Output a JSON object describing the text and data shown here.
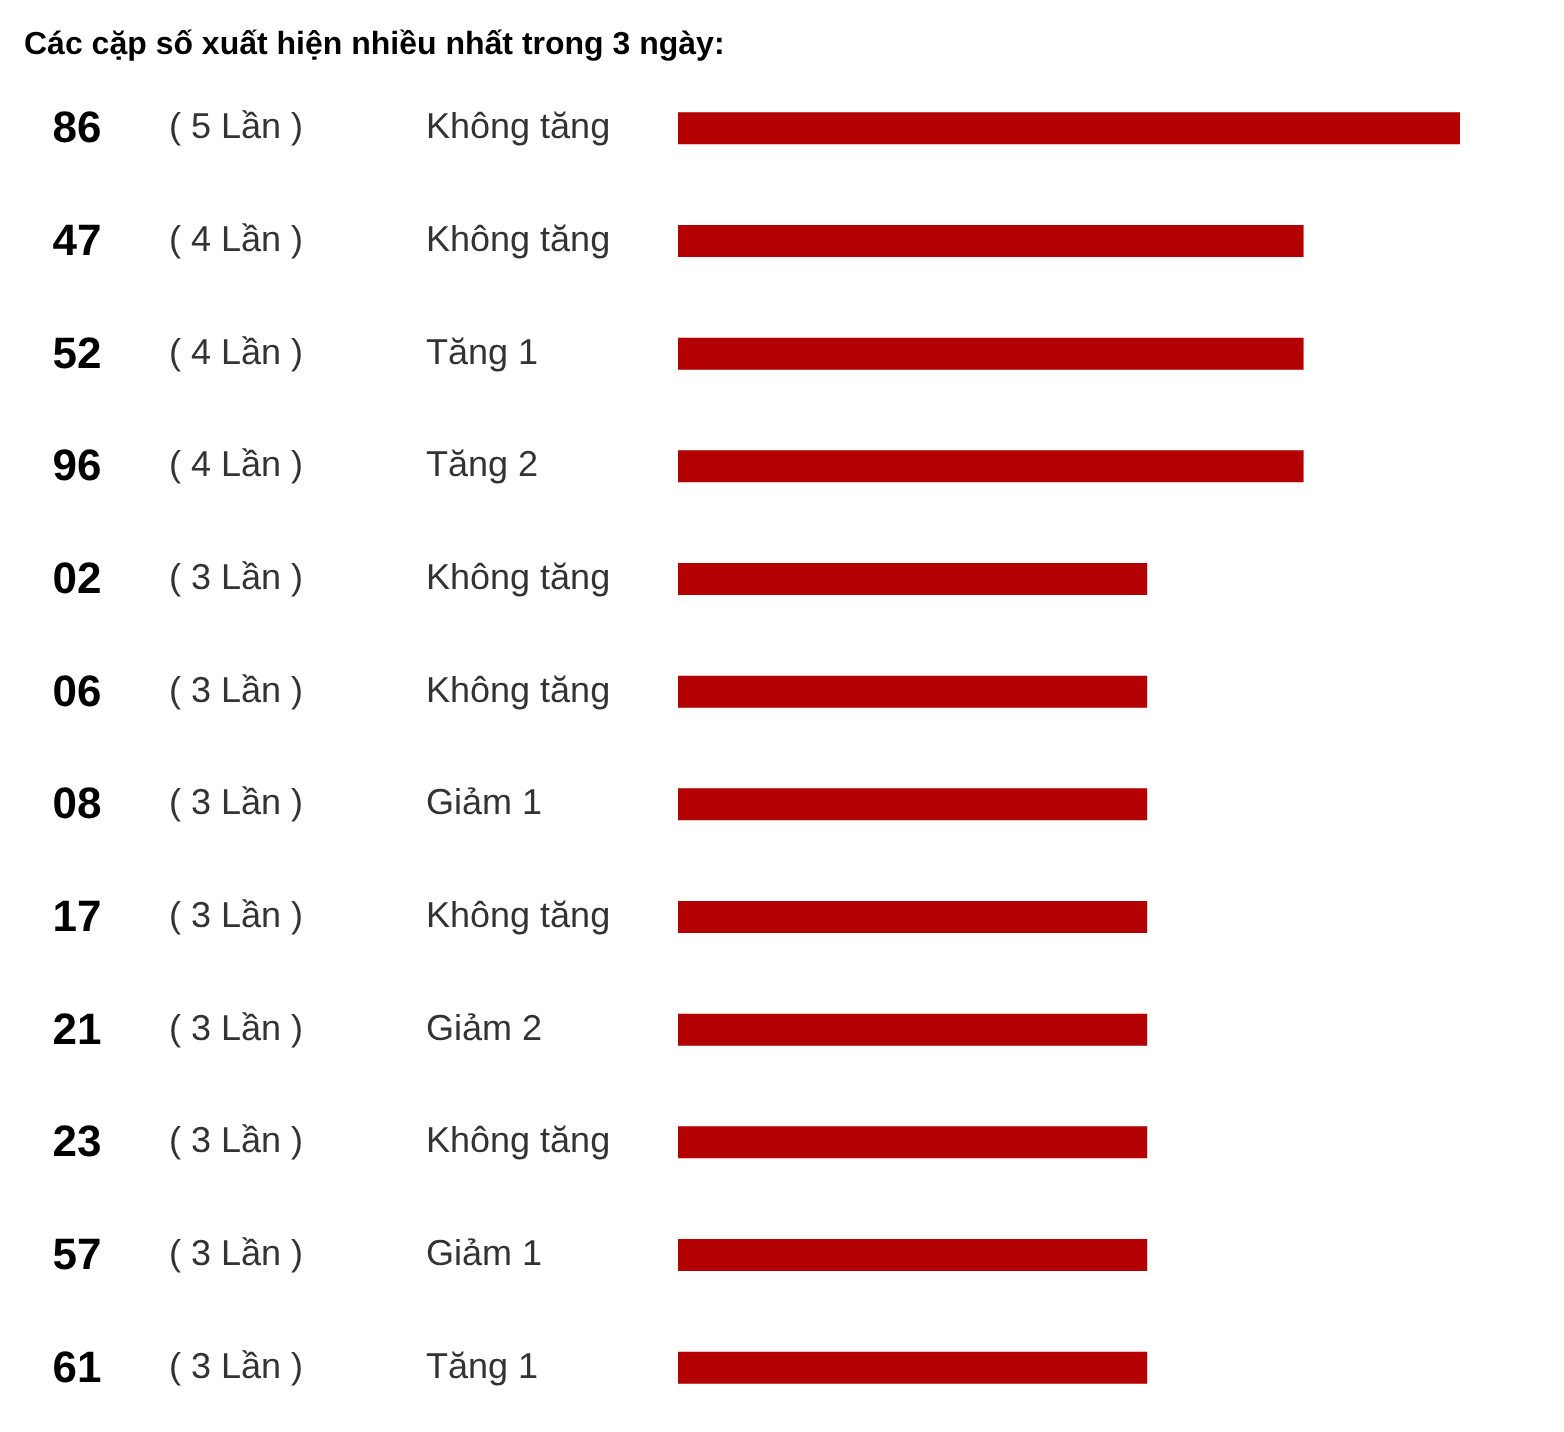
{
  "chart_data": {
    "type": "bar",
    "orientation": "horizontal",
    "title": "Các cặp số xuất hiện nhiều nhất trong 3 ngày:",
    "categories": [
      "86",
      "47",
      "52",
      "96",
      "02",
      "06",
      "08",
      "17",
      "21",
      "23",
      "57",
      "61"
    ],
    "values": [
      5,
      4,
      4,
      4,
      3,
      3,
      3,
      3,
      3,
      3,
      3,
      3
    ],
    "color": "#b30000",
    "value_labels": [
      "( 5 Lần )",
      "( 4 Lần )",
      "( 4 Lần )",
      "( 4 Lần )",
      "( 3 Lần )",
      "( 3 Lần )",
      "( 3 Lần )",
      "( 3 Lần )",
      "( 3 Lần )",
      "( 3 Lần )",
      "( 3 Lần )",
      "( 3 Lần )"
    ],
    "annotations": [
      "Không tăng",
      "Không tăng",
      "Tăng 1",
      "Tăng 2",
      "Không tăng",
      "Không tăng",
      "Giảm 1",
      "Không tăng",
      "Giảm 2",
      "Không tăng",
      "Giảm 1",
      "Tăng 1"
    ]
  }
}
